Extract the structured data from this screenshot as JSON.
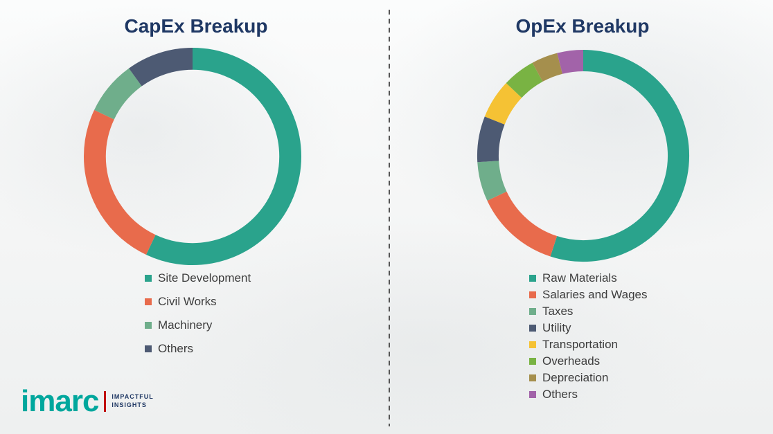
{
  "chart_data": [
    {
      "type": "donut",
      "title": "CapEx Breakup",
      "labels": [
        "Site Development",
        "Civil Works",
        "Machinery",
        "Others"
      ],
      "values": [
        57,
        25,
        8,
        10
      ],
      "colors": [
        "#2AA38C",
        "#E86B4C",
        "#6FAE8B",
        "#4D5A73"
      ],
      "legend_position": "bottom",
      "units": "percent"
    },
    {
      "type": "donut",
      "title": "OpEx Breakup",
      "labels": [
        "Raw Materials",
        "Salaries and Wages",
        "Taxes",
        "Utility",
        "Transportation",
        "Overheads",
        "Depreciation",
        "Others"
      ],
      "values": [
        55,
        13,
        6,
        7,
        6,
        5,
        4,
        4
      ],
      "colors": [
        "#2AA38C",
        "#E86B4C",
        "#6FAE8B",
        "#4D5A73",
        "#F5C234",
        "#79B343",
        "#A58F4D",
        "#A263A9"
      ],
      "legend_position": "bottom",
      "units": "percent"
    }
  ],
  "logo": {
    "brand": "imarc",
    "tagline_line1": "IMPACTFUL",
    "tagline_line2": "INSIGHTS",
    "brand_color": "#00A79D",
    "bar_color": "#C00000"
  },
  "divider_color": "#555555",
  "title_color": "#1F3864"
}
